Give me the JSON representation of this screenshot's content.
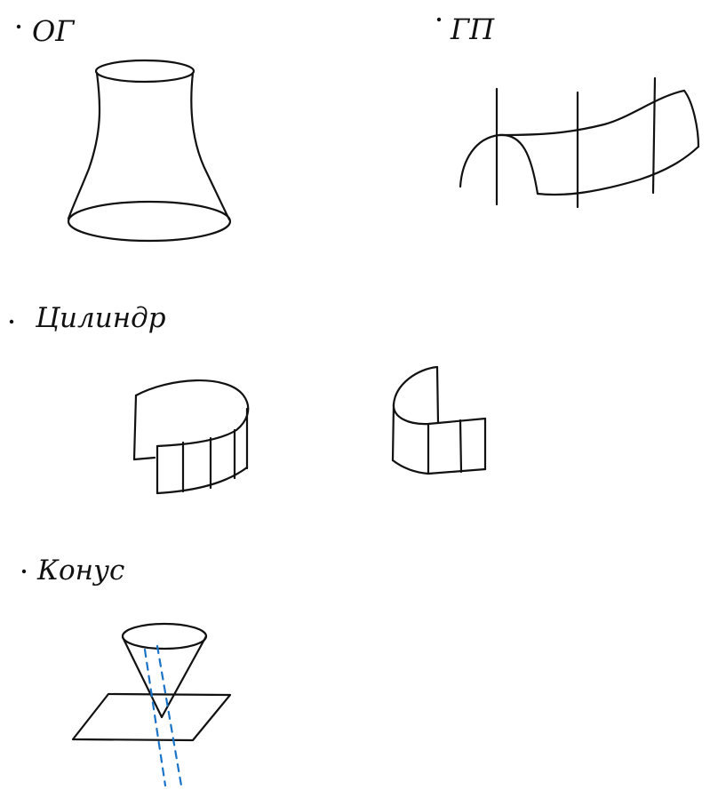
{
  "sections": {
    "og": {
      "label": "ОГ"
    },
    "gp": {
      "label": "ГП"
    },
    "cylinder": {
      "label": "Цилиндр"
    },
    "cone": {
      "label": "Конус"
    }
  },
  "colors": {
    "ink": "#111111",
    "axis_dashes": "#1a73c8",
    "background": "#ffffff"
  }
}
